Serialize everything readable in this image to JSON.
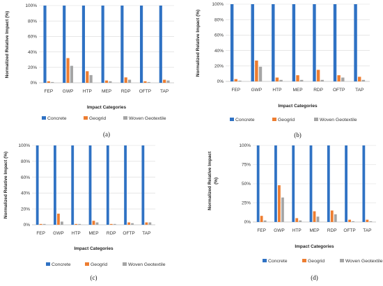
{
  "chart_data": [
    {
      "type": "bar",
      "panel": "(a)",
      "ylabel": "Normalized Relative Impact (%)",
      "xlabel": "Impact Categories",
      "ylim": [
        0,
        100
      ],
      "yticks": [
        "0%",
        "20%",
        "40%",
        "60%",
        "80%",
        "100%"
      ],
      "categories": [
        "FEP",
        "GWP",
        "HTP",
        "MEP",
        "RDP",
        "OFTP",
        "TAP"
      ],
      "series": [
        {
          "name": "Concrete",
          "values": [
            100,
            100,
            100,
            100,
            100,
            100,
            100
          ]
        },
        {
          "name": "Geogrid",
          "values": [
            2,
            32,
            15,
            3,
            7,
            2,
            4
          ]
        },
        {
          "name": "Woven Geotextile",
          "values": [
            1,
            22,
            10,
            2,
            4,
            1,
            3
          ]
        }
      ],
      "grid": true,
      "legend": "bottom"
    },
    {
      "type": "bar",
      "panel": "(b)",
      "ylabel": "Normalized Relative Impact (%)",
      "xlabel": "Impact Categories",
      "ylim": [
        0,
        100
      ],
      "yticks": [
        "0%",
        "20%",
        "40%",
        "60%",
        "80%",
        "100%"
      ],
      "categories": [
        "FEP",
        "GWP",
        "HTP",
        "MEP",
        "RDP",
        "OFTP",
        "TAP"
      ],
      "series": [
        {
          "name": "Concrete",
          "values": [
            100,
            100,
            100,
            100,
            100,
            100,
            100
          ]
        },
        {
          "name": "Geogrid",
          "values": [
            3,
            27,
            5,
            8,
            15,
            8,
            6
          ]
        },
        {
          "name": "Woven Geotextile",
          "values": [
            1,
            19,
            2,
            2,
            2,
            5,
            2
          ]
        }
      ],
      "grid": true,
      "legend": "bottom"
    },
    {
      "type": "bar",
      "panel": "(c)",
      "ylabel": "Normalized Relative Impact (%)",
      "xlabel": "Impact Categories",
      "ylim": [
        0,
        100
      ],
      "yticks": [
        "0%",
        "20%",
        "40%",
        "60%",
        "80%",
        "100%"
      ],
      "categories": [
        "FEP",
        "GWP",
        "HTP",
        "MEP",
        "RDP",
        "OFTP",
        "TAP"
      ],
      "series": [
        {
          "name": "Concrete",
          "values": [
            100,
            100,
            100,
            100,
            100,
            100,
            100
          ]
        },
        {
          "name": "Geogrid",
          "values": [
            1,
            14,
            1,
            5,
            1,
            3,
            3
          ]
        },
        {
          "name": "Woven Geotextile",
          "values": [
            1,
            4,
            1,
            3,
            1,
            2,
            3
          ]
        }
      ],
      "grid": true,
      "legend": "bottom"
    },
    {
      "type": "bar",
      "panel": "(d)",
      "ylabel": "Normalized Relative Impact (%)",
      "xlabel": "Impact Categories",
      "ylim": [
        0,
        100
      ],
      "yticks": [
        "0%",
        "25%",
        "50%",
        "75%",
        "100%"
      ],
      "categories": [
        "FEP",
        "GWP",
        "HTP",
        "MEP",
        "RDP",
        "OFTP",
        "TAP"
      ],
      "series": [
        {
          "name": "Concrete",
          "values": [
            100,
            100,
            100,
            100,
            100,
            100,
            100
          ]
        },
        {
          "name": "Geogrid",
          "values": [
            8,
            48,
            5,
            14,
            15,
            3,
            3
          ]
        },
        {
          "name": "Woven Geotextile",
          "values": [
            2,
            32,
            2,
            7,
            10,
            1,
            1
          ]
        }
      ],
      "grid": true,
      "legend": "bottom"
    }
  ],
  "colors": {
    "Concrete": "#2f72c4",
    "Geogrid": "#ed7d31",
    "Woven Geotextile": "#a5a5a5"
  }
}
